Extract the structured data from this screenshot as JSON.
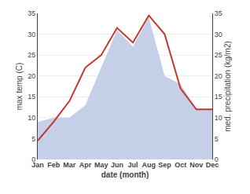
{
  "chart_data": {
    "type": "line",
    "categories": [
      "Jan",
      "Feb",
      "Mar",
      "Apr",
      "May",
      "Jun",
      "Jul",
      "Aug",
      "Sep",
      "Oct",
      "Nov",
      "Dec"
    ],
    "series": [
      {
        "type": "area",
        "axis": "y2",
        "color": "#c5cfe8",
        "values": [
          9.0,
          10.0,
          10.0,
          13.0,
          22.0,
          31.0,
          27.0,
          34.0,
          20.0,
          18.0,
          12.0,
          12.0
        ]
      },
      {
        "type": "line",
        "color": "#c0392b",
        "values": [
          4.5,
          9.0,
          14.0,
          22.0,
          25.0,
          31.5,
          28.0,
          34.5,
          30.0,
          17.0,
          12.0,
          12.0
        ]
      }
    ],
    "xlabel": "date (month)",
    "ylabel": "max temp (C)",
    "y2label": "med. precipitation (kg/m2)",
    "ylim": [
      0,
      35
    ],
    "yticks": [
      0,
      5,
      10,
      15,
      20,
      25,
      30,
      35
    ],
    "y2lim": [
      0,
      35
    ],
    "y2ticks": [
      0,
      5,
      10,
      15,
      20,
      25,
      30,
      35
    ],
    "grid": true
  }
}
